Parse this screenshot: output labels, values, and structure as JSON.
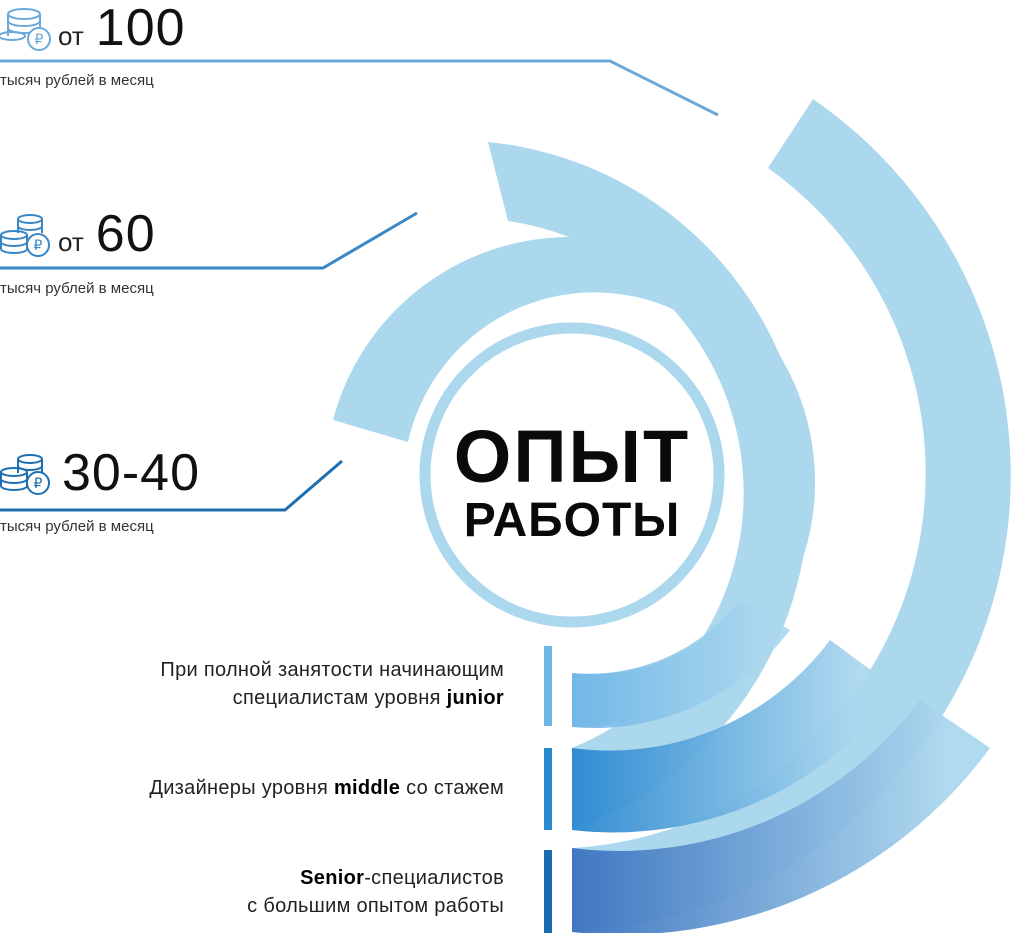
{
  "title": {
    "line1": "ОПЫТ",
    "line2": "РАБОТЫ"
  },
  "salaries": [
    {
      "prefix": "от",
      "amount": "100",
      "unit": "тысяч рублей в месяц",
      "color": "#6aa9d9"
    },
    {
      "prefix": "от",
      "amount": "60",
      "unit": "тысяч рублей в месяц",
      "color": "#3a87c4"
    },
    {
      "prefix": "",
      "amount": "30-40",
      "unit": "тысяч рублей в месяц",
      "color": "#1f6fb0"
    }
  ],
  "levels": [
    {
      "line1": "При полной занятости начинающим",
      "line2_pre": "специалистам уровня ",
      "line2_bold": "junior",
      "line2_post": "",
      "bar_color": "#6cb6e6"
    },
    {
      "line1_pre": "Дизайнеры уровня ",
      "line1_bold": "middle",
      "line1_post": " со стажем",
      "bar_color": "#2a8ad0"
    },
    {
      "line1_bold": "Senior",
      "line1_post": "-специалистов",
      "line2": "с большим опытом работы",
      "bar_color": "#1d6ab0"
    }
  ],
  "colors": {
    "arc_fill": "#acd8ee",
    "ring_stroke": "#acd8ee"
  }
}
